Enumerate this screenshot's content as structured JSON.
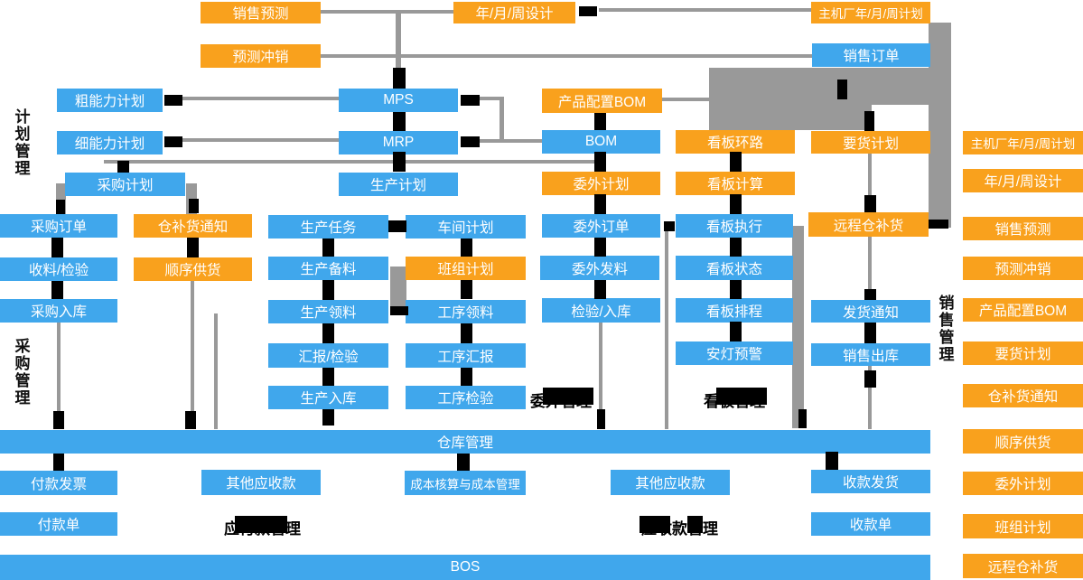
{
  "palette": {
    "blue": "#40A7EC",
    "orange": "#F9A11D",
    "gray": "#999999",
    "black": "#000000",
    "text": "#FFFFFF"
  },
  "side_labels": {
    "plan": "计划管理",
    "purchase": "采购管理",
    "sales": "销售管理"
  },
  "section_labels": {
    "outsourcing": "委外管理",
    "kanban": "看板管理",
    "payable": "应付款管理",
    "receivable": "应收款管理"
  },
  "nodes": {
    "sales-forecast-top": {
      "label": "销售预测",
      "color": "orange"
    },
    "ymw-design-top": {
      "label": "年/月/周设计",
      "color": "orange"
    },
    "oem-plan-top": {
      "label": "主机厂年/月/周计划",
      "color": "orange"
    },
    "forecast-writeoff-top": {
      "label": "预测冲销",
      "color": "orange"
    },
    "sales-order": {
      "label": "销售订单",
      "color": "blue"
    },
    "rough-capacity": {
      "label": "粗能力计划",
      "color": "blue"
    },
    "mps": {
      "label": "MPS",
      "color": "blue"
    },
    "product-config-bom": {
      "label": "产品配置BOM",
      "color": "orange"
    },
    "fine-capacity": {
      "label": "细能力计划",
      "color": "blue"
    },
    "mrp": {
      "label": "MRP",
      "color": "blue"
    },
    "bom": {
      "label": "BOM",
      "color": "blue"
    },
    "kanban-loop": {
      "label": "看板环路",
      "color": "orange"
    },
    "delivery-plan": {
      "label": "要货计划",
      "color": "orange"
    },
    "purchase-plan": {
      "label": "采购计划",
      "color": "blue"
    },
    "production-plan": {
      "label": "生产计划",
      "color": "blue"
    },
    "outsourcing-plan": {
      "label": "委外计划",
      "color": "orange"
    },
    "kanban-calc": {
      "label": "看板计算",
      "color": "orange"
    },
    "purchase-order": {
      "label": "采购订单",
      "color": "blue"
    },
    "warehouse-replenish-notice": {
      "label": "仓补货通知",
      "color": "orange"
    },
    "production-task": {
      "label": "生产任务",
      "color": "blue"
    },
    "workshop-plan": {
      "label": "车间计划",
      "color": "blue"
    },
    "outsourcing-order": {
      "label": "委外订单",
      "color": "blue"
    },
    "kanban-exec": {
      "label": "看板执行",
      "color": "blue"
    },
    "remote-replenish": {
      "label": "远程仓补货",
      "color": "orange"
    },
    "receive-inspect": {
      "label": "收料/检验",
      "color": "blue"
    },
    "sequence-supply": {
      "label": "顺序供货",
      "color": "orange"
    },
    "production-prepare": {
      "label": "生产备料",
      "color": "blue"
    },
    "team-plan": {
      "label": "班组计划",
      "color": "orange"
    },
    "outsourcing-issue": {
      "label": "委外发料",
      "color": "blue"
    },
    "kanban-status": {
      "label": "看板状态",
      "color": "blue"
    },
    "purchase-inbound": {
      "label": "采购入库",
      "color": "blue"
    },
    "production-picking": {
      "label": "生产领料",
      "color": "blue"
    },
    "process-picking": {
      "label": "工序领料",
      "color": "blue"
    },
    "inspect-inbound": {
      "label": "检验/入库",
      "color": "blue"
    },
    "kanban-schedule": {
      "label": "看板排程",
      "color": "blue"
    },
    "shipping-notice": {
      "label": "发货通知",
      "color": "blue"
    },
    "report-inspect": {
      "label": "汇报/检验",
      "color": "blue"
    },
    "process-report": {
      "label": "工序汇报",
      "color": "blue"
    },
    "andon-warning": {
      "label": "安灯预警",
      "color": "blue"
    },
    "sales-outbound": {
      "label": "销售出库",
      "color": "blue"
    },
    "production-inbound": {
      "label": "生产入库",
      "color": "blue"
    },
    "process-inspect": {
      "label": "工序检验",
      "color": "blue"
    },
    "warehouse-mgmt": {
      "label": "仓库管理",
      "color": "blue"
    },
    "payment-invoice": {
      "label": "付款发票",
      "color": "blue"
    },
    "other-receivable-1": {
      "label": "其他应收款",
      "color": "blue"
    },
    "cost-mgmt": {
      "label": "成本核算与成本管理",
      "color": "blue"
    },
    "other-receivable-2": {
      "label": "其他应收款",
      "color": "blue"
    },
    "receipt-delivery": {
      "label": "收款发货",
      "color": "blue"
    },
    "payment-slip": {
      "label": "付款单",
      "color": "blue"
    },
    "receipt-slip": {
      "label": "收款单",
      "color": "blue"
    },
    "bos": {
      "label": "BOS",
      "color": "blue"
    },
    "r-oem-plan": {
      "label": "主机厂年/月/周计划",
      "color": "orange"
    },
    "r-ymw-design": {
      "label": "年/月/周设计",
      "color": "orange"
    },
    "r-sales-forecast": {
      "label": "销售预测",
      "color": "orange"
    },
    "r-forecast-writeoff": {
      "label": "预测冲销",
      "color": "orange"
    },
    "r-product-config-bom": {
      "label": "产品配置BOM",
      "color": "orange"
    },
    "r-delivery-plan": {
      "label": "要货计划",
      "color": "orange"
    },
    "r-warehouse-replenish": {
      "label": "仓补货通知",
      "color": "orange"
    },
    "r-sequence-supply": {
      "label": "顺序供货",
      "color": "orange"
    },
    "r-outsourcing-plan": {
      "label": "委外计划",
      "color": "orange"
    },
    "r-team-plan": {
      "label": "班组计划",
      "color": "orange"
    },
    "r-remote-replenish": {
      "label": "远程仓补货",
      "color": "orange"
    }
  }
}
